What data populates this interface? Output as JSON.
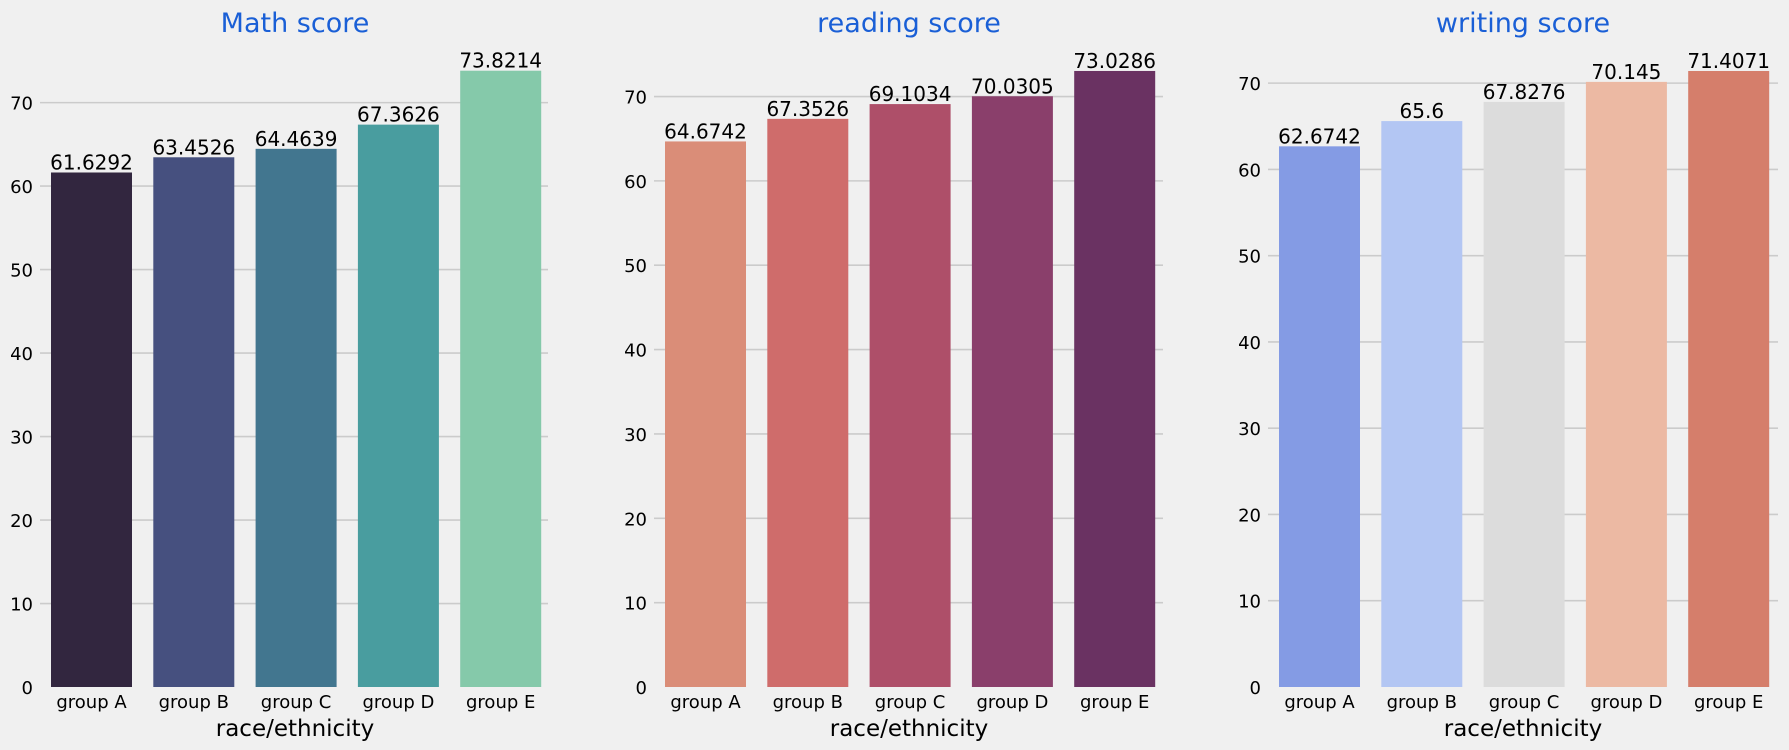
{
  "chart_data": [
    {
      "type": "bar",
      "title": "Math score",
      "xlabel": "race/ethnicity",
      "ylabel": "",
      "ylim": [
        0,
        77.5
      ],
      "yticks": [
        0,
        10,
        20,
        30,
        40,
        50,
        60,
        70
      ],
      "grid": "horizontal",
      "categories": [
        "group A",
        "group B",
        "group C",
        "group D",
        "group E"
      ],
      "values": [
        61.6292,
        63.4526,
        64.4639,
        67.3626,
        73.8214
      ],
      "value_labels": [
        "61.6292",
        "63.4526",
        "64.4639",
        "67.3626",
        "73.8214"
      ],
      "colors": [
        "#32263f",
        "#46507f",
        "#42768f",
        "#499d9f",
        "#85c9aa"
      ]
    },
    {
      "type": "bar",
      "title": "reading score",
      "xlabel": "race/ethnicity",
      "ylabel": "",
      "ylim": [
        0,
        76.7
      ],
      "yticks": [
        0,
        10,
        20,
        30,
        40,
        50,
        60,
        70
      ],
      "grid": "horizontal",
      "categories": [
        "group A",
        "group B",
        "group C",
        "group D",
        "group E"
      ],
      "values": [
        64.6742,
        67.3526,
        69.1034,
        70.0305,
        73.0286
      ],
      "value_labels": [
        "64.6742",
        "67.3526",
        "69.1034",
        "70.0305",
        "73.0286"
      ],
      "colors": [
        "#da8d78",
        "#cf6c6b",
        "#ae4f69",
        "#8a3f6b",
        "#6a3262"
      ]
    },
    {
      "type": "bar",
      "title": "writing score",
      "xlabel": "race/ethnicity",
      "ylabel": "",
      "ylim": [
        0,
        75
      ],
      "yticks": [
        0,
        10,
        20,
        30,
        40,
        50,
        60,
        70
      ],
      "grid": "horizontal",
      "categories": [
        "group A",
        "group B",
        "group C",
        "group D",
        "group E"
      ],
      "values": [
        62.6742,
        65.6,
        67.8276,
        70.145,
        71.4071
      ],
      "value_labels": [
        "62.6742",
        "65.6",
        "67.8276",
        "70.145",
        "71.4071"
      ],
      "colors": [
        "#849be4",
        "#b3c6f3",
        "#dcdcdc",
        "#ecb9a3",
        "#d57e6b"
      ]
    }
  ],
  "style": {
    "background": "#f0f0f0",
    "title_color": "#1a5fd6",
    "grid_color": "#cbcbcb",
    "text_color": "#000000"
  }
}
